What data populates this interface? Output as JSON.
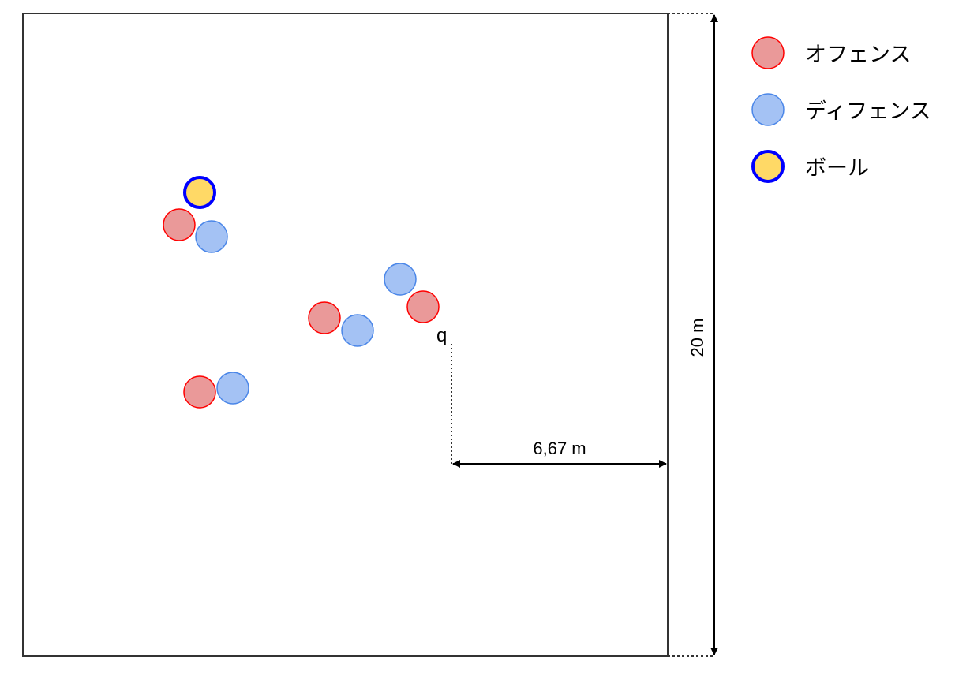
{
  "diagram": {
    "width_label": "6,67 m",
    "height_label": "20 m",
    "marker_label": "q"
  },
  "legend": [
    {
      "label": "オフェンス",
      "fill": "#ea9999",
      "stroke": "#ff0000"
    },
    {
      "label": "ディフェンス",
      "fill": "#a4c2f4",
      "stroke": "#4a86e8"
    },
    {
      "label": "ボール",
      "fill": "#ffd966",
      "stroke": "#0000ff"
    }
  ],
  "colors": {
    "offense_fill": "#ea9999",
    "offense_stroke": "#ff0000",
    "defense_fill": "#a4c2f4",
    "defense_stroke": "#4a86e8",
    "ball_fill": "#ffd966",
    "ball_stroke": "#0000ff"
  }
}
